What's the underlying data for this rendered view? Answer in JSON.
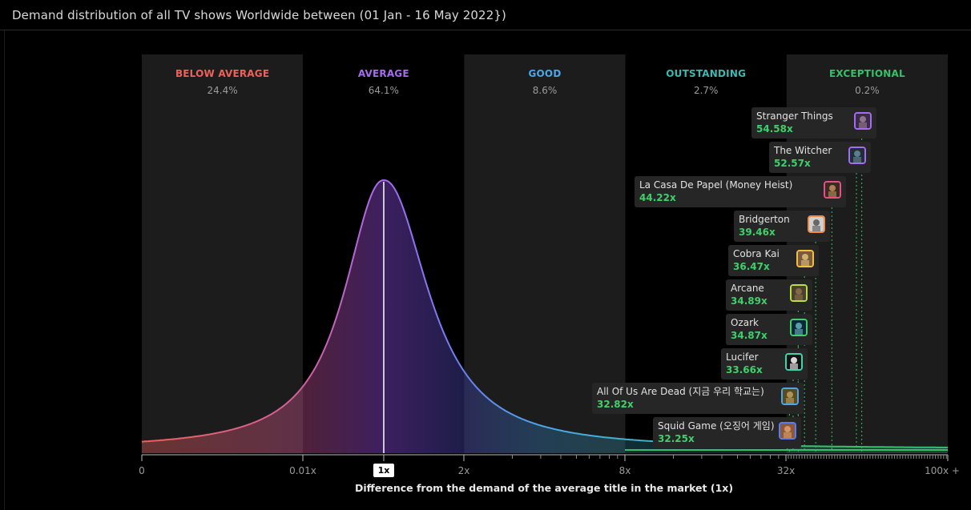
{
  "panel": {
    "title": "Demand distribution of all TV shows Worldwide between (01 Jan - 16 May 2022})"
  },
  "colors": {
    "below": "#f0605a",
    "average": "#a56cf0",
    "good": "#4aa8e8",
    "outstanding": "#3bb9b0",
    "exceptional": "#32c26a",
    "value_green": "#3fd06a"
  },
  "chart_data": {
    "type": "area",
    "title": "Demand distribution of all TV shows Worldwide between (01 Jan - 16 May 2022})",
    "xlabel": "Difference from the demand of the average title in the market (1x)",
    "x_ticks": [
      "0",
      "0.01x",
      "1x",
      "2x",
      "8x",
      "32x",
      "100x +"
    ],
    "bands": [
      {
        "name": "BELOW AVERAGE",
        "share": "24.4%",
        "color": "#f0605a",
        "range": [
          "0",
          "0.01x"
        ]
      },
      {
        "name": "AVERAGE",
        "share": "64.1%",
        "color": "#a56cf0",
        "range": [
          "0.01x",
          "2x"
        ]
      },
      {
        "name": "GOOD",
        "share": "8.6%",
        "color": "#4aa8e8",
        "range": [
          "2x",
          "8x"
        ]
      },
      {
        "name": "OUTSTANDING",
        "share": "2.7%",
        "color": "#3bb9b0",
        "range": [
          "8x",
          "32x"
        ]
      },
      {
        "name": "EXCEPTIONAL",
        "share": "0.2%",
        "color": "#32c26a",
        "range": [
          "32x",
          "100x +"
        ]
      }
    ],
    "peak_at": "1x",
    "top_titles": [
      {
        "name": "Stranger Things",
        "value": "54.58x",
        "demand": 54.58,
        "border": "#a56cf0",
        "icon": "stranger-things-poster-icon"
      },
      {
        "name": "The Witcher",
        "value": "52.57x",
        "demand": 52.57,
        "border": "#a56cf0",
        "icon": "the-witcher-poster-icon"
      },
      {
        "name": "La Casa De Papel (Money Heist)",
        "value": "44.22x",
        "demand": 44.22,
        "border": "#e6508a",
        "icon": "money-heist-poster-icon"
      },
      {
        "name": "Bridgerton",
        "value": "39.46x",
        "demand": 39.46,
        "border": "#f08a4a",
        "icon": "bridgerton-poster-icon"
      },
      {
        "name": "Cobra Kai",
        "value": "36.47x",
        "demand": 36.47,
        "border": "#f0c040",
        "icon": "cobra-kai-poster-icon"
      },
      {
        "name": "Arcane",
        "value": "34.89x",
        "demand": 34.89,
        "border": "#b8e040",
        "icon": "arcane-poster-icon"
      },
      {
        "name": "Ozark",
        "value": "34.87x",
        "demand": 34.87,
        "border": "#3fd06a",
        "icon": "ozark-poster-icon"
      },
      {
        "name": "Lucifer",
        "value": "33.66x",
        "demand": 33.66,
        "border": "#3bd6b0",
        "icon": "lucifer-poster-icon"
      },
      {
        "name": "All Of Us Are Dead (지금 우리 학교는)",
        "value": "32.82x",
        "demand": 32.82,
        "border": "#4aa8e8",
        "icon": "all-of-us-are-dead-poster-icon"
      },
      {
        "name": "Squid Game (오징어 게임)",
        "value": "32.25x",
        "demand": 32.25,
        "border": "#5a7cf0",
        "icon": "squid-game-poster-icon"
      }
    ]
  }
}
